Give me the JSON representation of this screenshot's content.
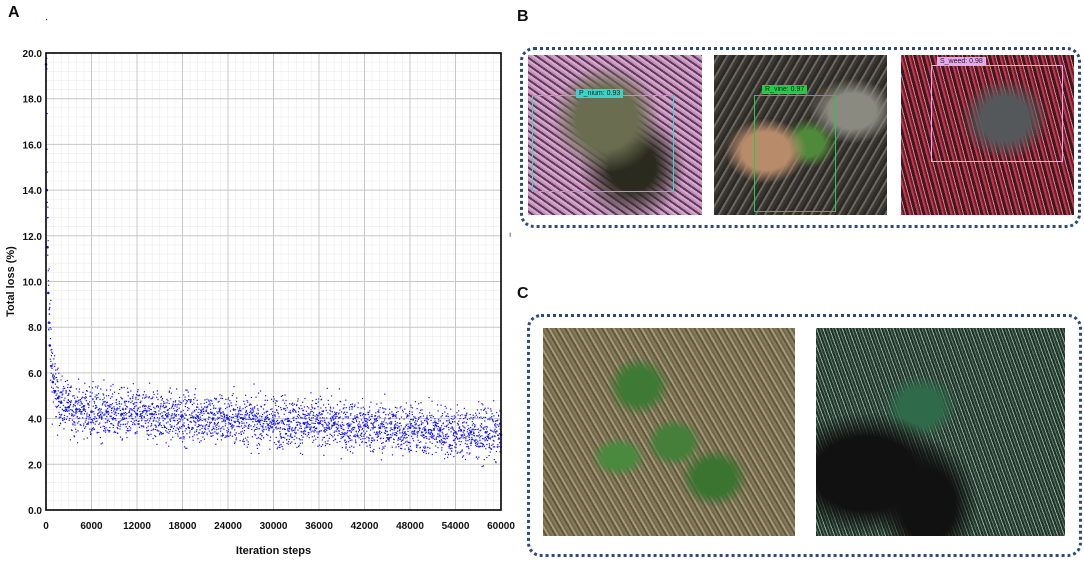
{
  "panels": {
    "a": "A",
    "b": "B",
    "c": "C"
  },
  "chart_data": {
    "type": "scatter",
    "title": "",
    "xlabel": "Iteration steps",
    "ylabel": "Total loss (%)",
    "xlim": [
      0,
      60000
    ],
    "ylim": [
      0,
      20
    ],
    "x_ticks": [
      "0",
      "6000",
      "12000",
      "18000",
      "24000",
      "30000",
      "36000",
      "42000",
      "48000",
      "54000",
      "60000"
    ],
    "y_ticks": [
      "0.0",
      "2.0",
      "4.0",
      "6.0",
      "8.0",
      "10.0",
      "12.0",
      "14.0",
      "16.0",
      "18.0",
      "20.0"
    ],
    "grid": true,
    "marker_color": "#1414ff",
    "series": [
      {
        "x": [
          0,
          100,
          200,
          300,
          400,
          500,
          700,
          900,
          1200,
          1600,
          2000,
          3000,
          4000,
          5000,
          6000,
          8000,
          10000,
          12000,
          14000,
          16000,
          18000,
          20000,
          22000,
          24000,
          26000,
          28000,
          30000,
          32000,
          34000,
          36000,
          38000,
          40000,
          42000,
          44000,
          46000,
          48000,
          50000,
          52000,
          54000,
          56000,
          58000,
          60000
        ],
        "y": [
          19.5,
          14.0,
          11.5,
          9.5,
          8.2,
          7.2,
          6.3,
          5.6,
          5.2,
          4.9,
          4.7,
          4.5,
          4.4,
          4.4,
          4.3,
          4.3,
          4.2,
          4.2,
          4.2,
          4.1,
          4.1,
          4.1,
          4.0,
          4.0,
          4.0,
          3.9,
          3.9,
          3.9,
          3.8,
          3.8,
          3.8,
          3.7,
          3.7,
          3.6,
          3.6,
          3.6,
          3.5,
          3.5,
          3.4,
          3.4,
          3.4,
          3.3
        ]
      }
    ]
  },
  "detections": [
    {
      "label": "P_nium: 0.93",
      "color": "#35d6c9"
    },
    {
      "label": "R_vine: 0.97",
      "color": "#22cc44"
    },
    {
      "label": "S_weed: 0.98",
      "color": "#e6a8ee"
    }
  ],
  "stray_mark": "ı"
}
